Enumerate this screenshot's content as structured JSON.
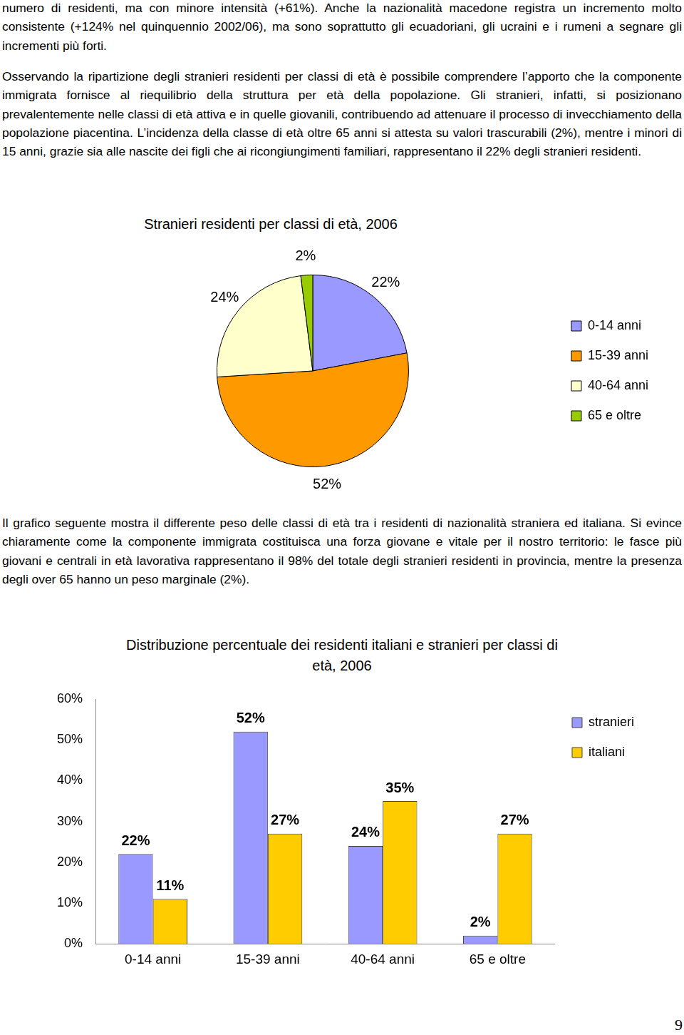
{
  "paragraphs": [
    "numero di residenti, ma con minore intensità (+61%). Anche la nazionalità macedone registra un incremento molto consistente (+124% nel quinquennio 2002/06), ma sono soprattutto gli ecuadoriani, gli ucraini e i rumeni a segnare gli incrementi più forti.",
    "Osservando la ripartizione degli stranieri residenti per classi di età è possibile comprendere l’apporto che la componente immigrata fornisce al riequilibrio della struttura per età della popolazione. Gli stranieri, infatti, si posizionano prevalentemente nelle classi di età attiva e in quelle giovanili, contribuendo ad attenuare il processo di invecchiamento della popolazione piacentina. L’incidenza della classe di età oltre 65 anni si attesta su valori trascurabili (2%), mentre i minori di 15 anni, grazie sia alle nascite dei figli che ai ricongiungimenti familiari, rappresentano il 22% degli stranieri residenti.",
    "Il grafico seguente mostra il differente peso delle classi di età tra i residenti di nazionalità straniera ed italiana. Si evince chiaramente come la componente immigrata costituisca una forza giovane e vitale per il nostro territorio: le fasce più giovani e centrali in età lavorativa rappresentano il 98% del totale degli stranieri residenti in provincia, mentre la presenza degli over 65 hanno un peso marginale (2%)."
  ],
  "page_number": "9",
  "chart_data": [
    {
      "type": "pie",
      "title": "Stranieri residenti per classi di età, 2006",
      "categories": [
        "0-14 anni",
        "15-39 anni",
        "40-64 anni",
        "65 e oltre"
      ],
      "values": [
        22,
        52,
        24,
        2
      ],
      "value_labels": [
        "22%",
        "52%",
        "24%",
        "2%"
      ],
      "colors": [
        "#9999ff",
        "#ff9900",
        "#ffffcc",
        "#99cc00"
      ],
      "data_labels": true,
      "legend": "right"
    },
    {
      "type": "bar",
      "title": "Distribuzione percentuale dei residenti italiani e stranieri per classi di età, 2006",
      "categories": [
        "0-14 anni",
        "15-39 anni",
        "40-64 anni",
        "65 e oltre"
      ],
      "series": [
        {
          "name": "stranieri",
          "color": "#9999ff",
          "values": [
            22,
            52,
            24,
            2
          ],
          "value_labels": [
            "22%",
            "52%",
            "24%",
            "2%"
          ]
        },
        {
          "name": "italiani",
          "color": "#ffcc00",
          "values": [
            11,
            27,
            35,
            27
          ],
          "value_labels": [
            "11%",
            "27%",
            "35%",
            "27%"
          ]
        }
      ],
      "ylim": [
        0,
        60
      ],
      "yticks": [
        {
          "value": 0,
          "label": "0%"
        },
        {
          "value": 10,
          "label": "10%"
        },
        {
          "value": 20,
          "label": "20%"
        },
        {
          "value": 30,
          "label": "30%"
        },
        {
          "value": 40,
          "label": "40%"
        },
        {
          "value": 50,
          "label": "50%"
        },
        {
          "value": 60,
          "label": "60%"
        }
      ],
      "grid": false,
      "data_labels": true,
      "legend": "top-right"
    }
  ]
}
